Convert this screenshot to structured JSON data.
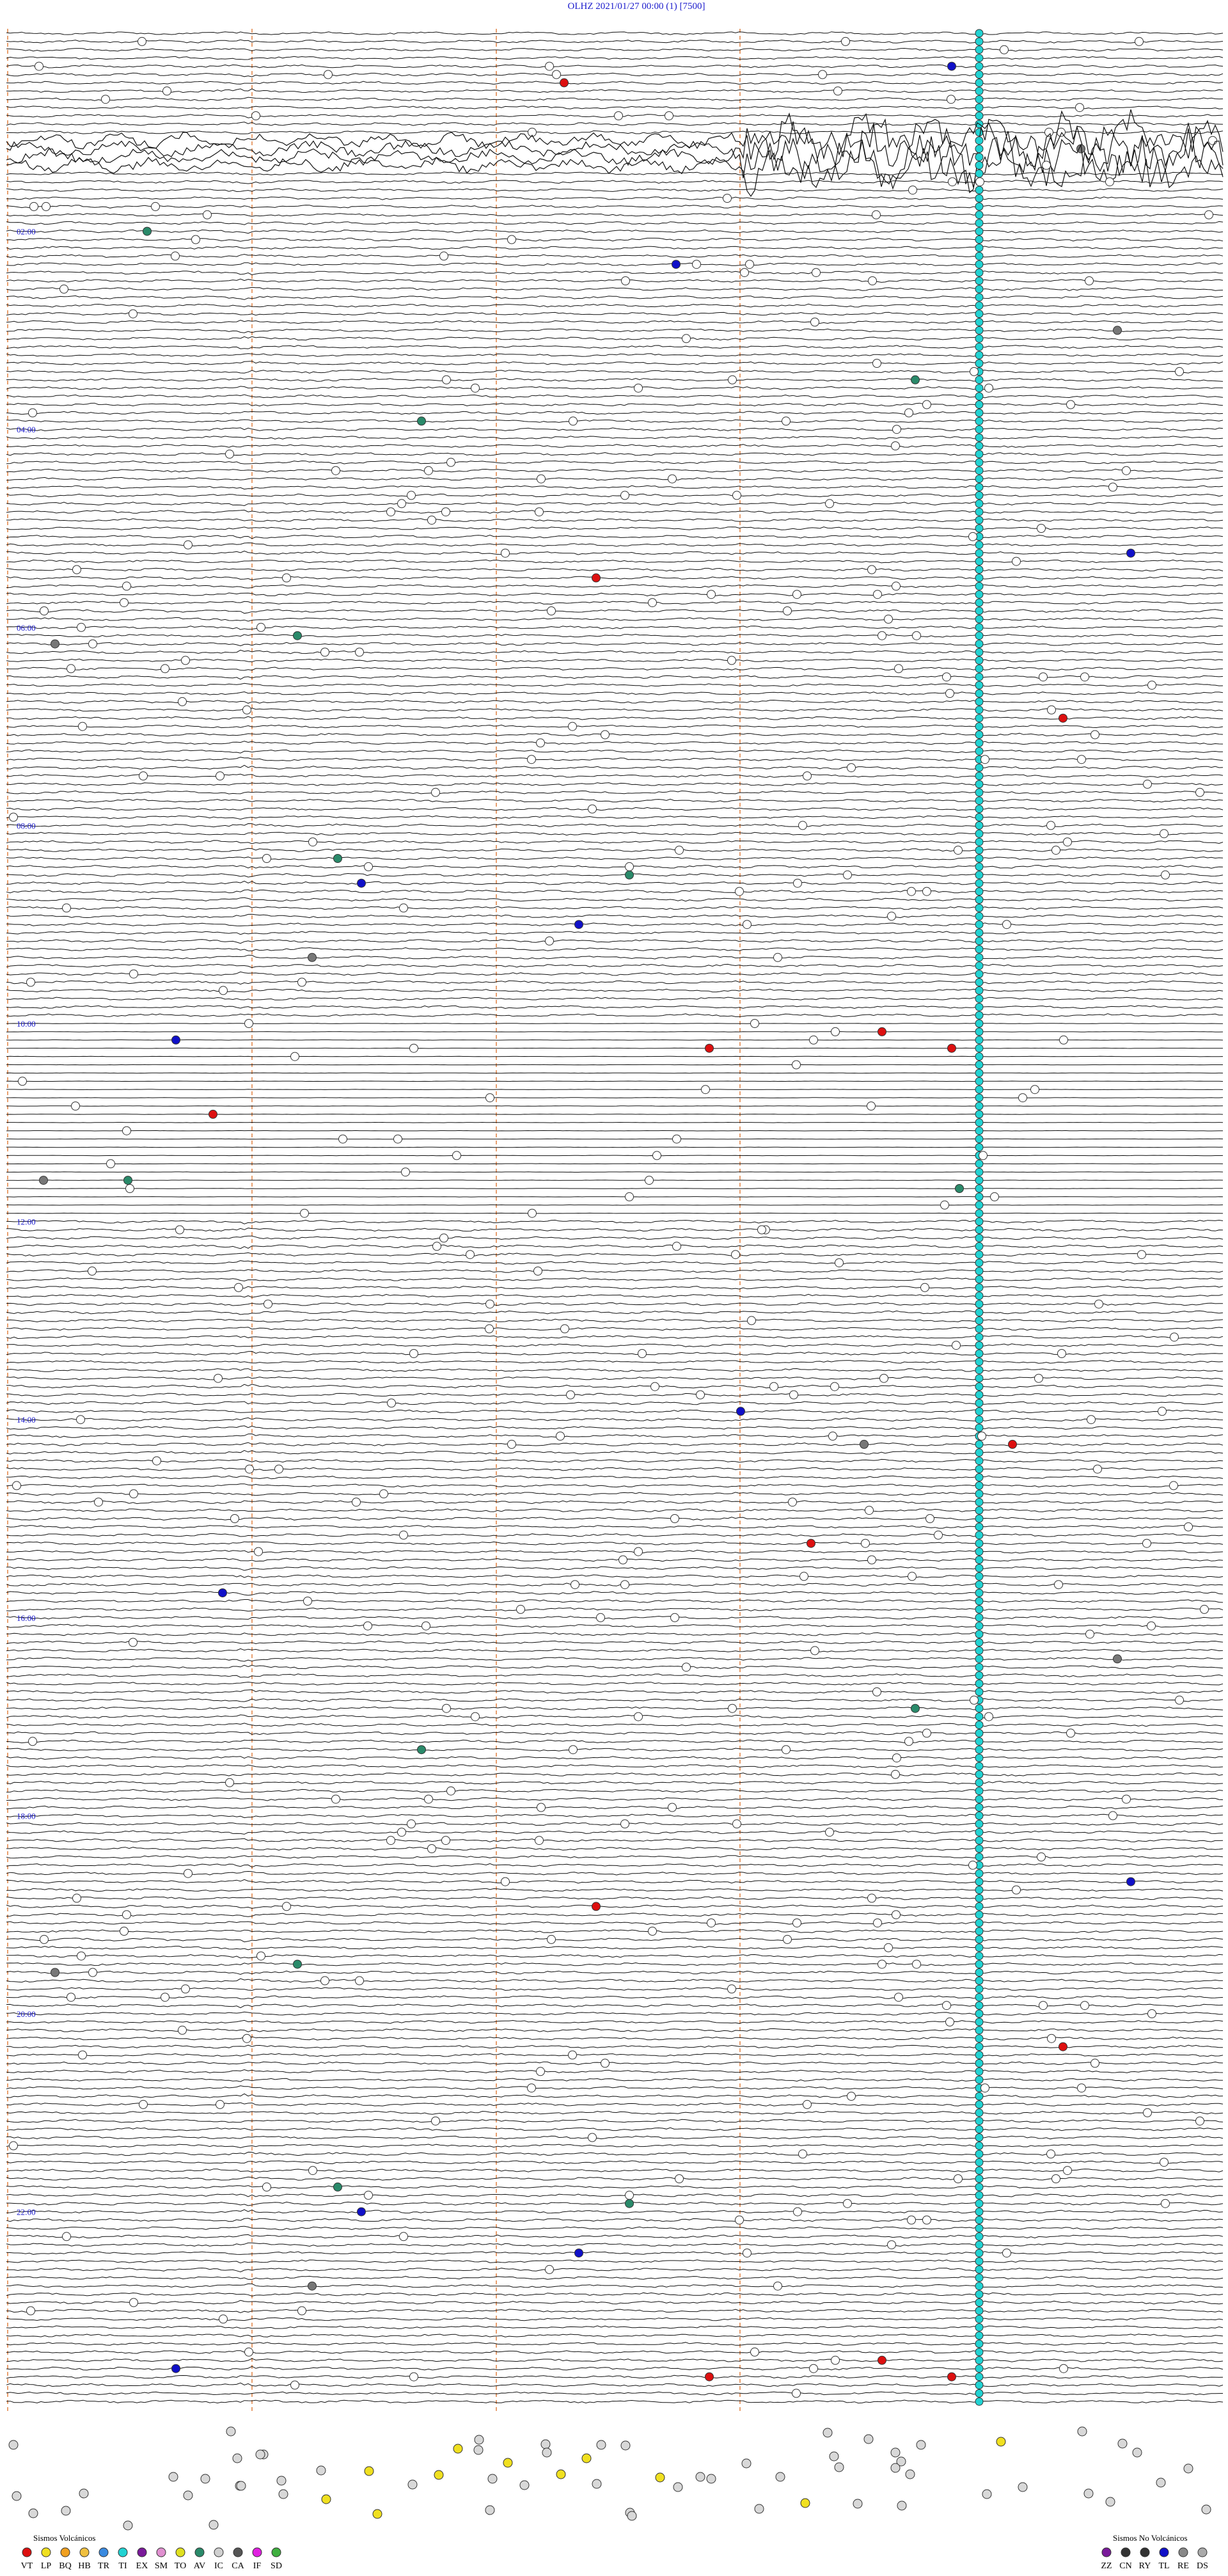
{
  "header": {
    "title": "OLHZ    2021/01/27 00:00    (1)    [7500]"
  },
  "hour_labels": [
    "02:00",
    "04:00",
    "06:00",
    "08:00",
    "10:00",
    "12:00",
    "14:00",
    "16:00",
    "18:00",
    "20:00",
    "22:00"
  ],
  "legend": {
    "volcanic": {
      "title": "Sismos Volcánicos",
      "codes": [
        "VT",
        "LP",
        "BQ",
        "HB",
        "TR",
        "TI",
        "EX",
        "SM",
        "TO",
        "AV",
        "IC",
        "CA",
        "IF",
        "SD"
      ]
    },
    "non_volcanic": {
      "title": "Sismos No Volcánicos",
      "codes": [
        "ZZ",
        "CN",
        "RY",
        "TL",
        "RE",
        "DS"
      ]
    }
  }
}
